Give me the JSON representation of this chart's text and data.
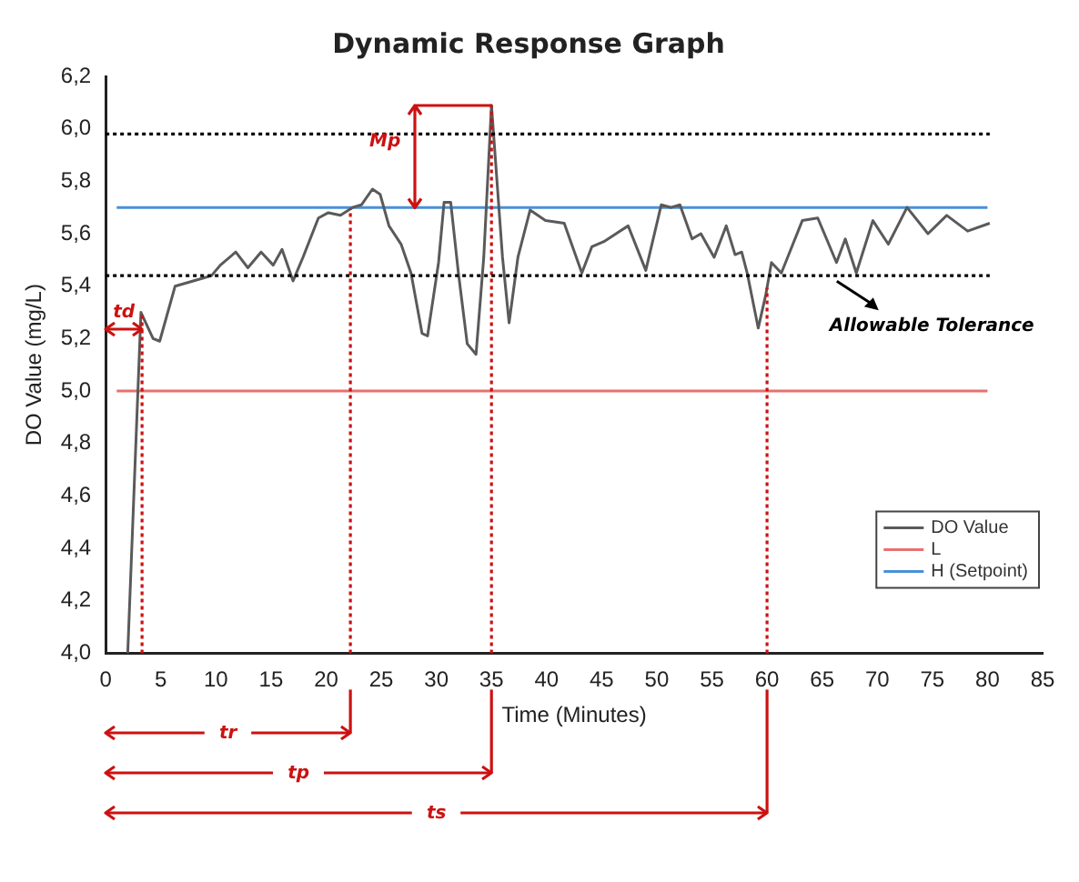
{
  "chart_data": {
    "type": "line",
    "title": "Dynamic Response Graph",
    "xlabel": "Time (Minutes)",
    "ylabel": "DO Value (mg/L)",
    "xlim": [
      0,
      85
    ],
    "xticks": [
      0,
      5,
      10,
      15,
      20,
      25,
      30,
      35,
      40,
      45,
      50,
      55,
      60,
      65,
      70,
      75,
      80,
      85
    ],
    "ylim": [
      4.0,
      6.2
    ],
    "yticks": [
      {
        "value": 4.0,
        "label": "4,0"
      },
      {
        "value": 4.2,
        "label": "4,2"
      },
      {
        "value": 4.4,
        "label": "4,4"
      },
      {
        "value": 4.6,
        "label": "4,6"
      },
      {
        "value": 4.8,
        "label": "4,8"
      },
      {
        "value": 5.0,
        "label": "5,0"
      },
      {
        "value": 5.2,
        "label": "5,2"
      },
      {
        "value": 5.4,
        "label": "5,4"
      },
      {
        "value": 5.6,
        "label": "5,6"
      },
      {
        "value": 5.8,
        "label": "5,8"
      },
      {
        "value": 6.0,
        "label": "6,0"
      },
      {
        "value": 6.2,
        "label": "6,2"
      }
    ],
    "grid": false,
    "legend": "bottom right",
    "marker": "none",
    "line_style": "solid",
    "series": [
      {
        "name": "DO Value",
        "color": "#5a5a5a",
        "x": [
          2.0,
          3.2,
          4.3,
          4.9,
          6.3,
          8.8,
          9.6,
          10.4,
          11.8,
          12.9,
          14.1,
          15.2,
          16.0,
          17.0,
          17.9,
          19.3,
          20.2,
          21.3,
          22.4,
          23.2,
          24.2,
          24.9,
          25.7,
          26.8,
          27.7,
          28.7,
          29.2,
          30.2,
          30.7,
          31.3,
          32.0,
          32.8,
          33.6,
          34.3,
          35.0,
          36.0,
          36.6,
          37.4,
          38.5,
          39.9,
          41.6,
          43.2,
          44.1,
          45.2,
          47.4,
          49.0,
          50.4,
          51.3,
          52.1,
          53.2,
          54.0,
          55.2,
          56.3,
          57.1,
          57.7,
          58.2,
          59.2,
          59.9,
          60.4,
          61.3,
          63.2,
          64.6,
          65.4,
          66.3,
          67.1,
          68.1,
          69.6,
          71.0,
          72.7,
          74.6,
          76.3,
          78.2,
          80.2
        ],
        "values": [
          4.0,
          5.3,
          5.2,
          5.19,
          5.4,
          5.43,
          5.44,
          5.48,
          5.53,
          5.47,
          5.53,
          5.48,
          5.54,
          5.42,
          5.51,
          5.66,
          5.68,
          5.67,
          5.7,
          5.71,
          5.77,
          5.75,
          5.63,
          5.56,
          5.45,
          5.22,
          5.21,
          5.49,
          5.72,
          5.72,
          5.45,
          5.18,
          5.14,
          5.51,
          6.09,
          5.51,
          5.26,
          5.51,
          5.69,
          5.65,
          5.64,
          5.45,
          5.55,
          5.57,
          5.63,
          5.46,
          5.71,
          5.7,
          5.71,
          5.58,
          5.6,
          5.51,
          5.63,
          5.52,
          5.53,
          5.45,
          5.24,
          5.37,
          5.49,
          5.45,
          5.65,
          5.66,
          5.58,
          5.49,
          5.58,
          5.45,
          5.65,
          5.56,
          5.7,
          5.6,
          5.67,
          5.61,
          5.64
        ]
      },
      {
        "name": "L",
        "color": "#e87070",
        "x": [
          1,
          80
        ],
        "values": [
          5.0,
          5.0
        ]
      },
      {
        "name": "H (Setpoint)",
        "color": "#4a90d9",
        "x": [
          1,
          80
        ],
        "values": [
          5.7,
          5.7
        ]
      }
    ],
    "ref_lines": [
      {
        "axis": "x",
        "value": 3.3,
        "label": "td",
        "color": "#cc1111",
        "line_style": "dotted"
      },
      {
        "axis": "x",
        "value": 22.2,
        "label": "tr",
        "color": "#cc1111",
        "line_style": "dotted"
      },
      {
        "axis": "x",
        "value": 35,
        "label": "tp",
        "color": "#cc1111",
        "line_style": "dotted"
      },
      {
        "axis": "x",
        "value": 60,
        "label": "ts",
        "color": "#cc1111",
        "line_style": "dotted"
      },
      {
        "axis": "y",
        "value": 5.98,
        "color": "#000000",
        "line_style": "dotted"
      },
      {
        "axis": "y",
        "value": 5.44,
        "color": "#000000",
        "line_style": "dotted"
      }
    ],
    "annotations": [
      "Mp",
      {
        "text": "Allowable Tolerance",
        "x": 66,
        "y": 5.44
      }
    ]
  }
}
